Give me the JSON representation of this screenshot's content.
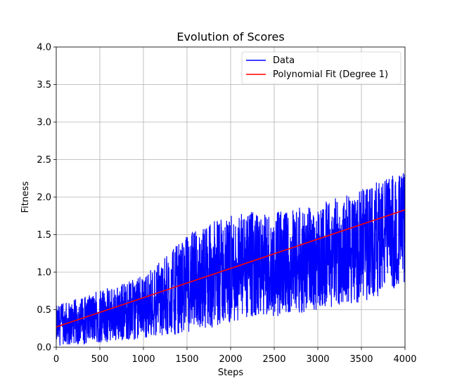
{
  "chart_data": {
    "type": "line",
    "title": "Evolution of Scores",
    "xlabel": "Steps",
    "ylabel": "Fitness",
    "xlim": [
      0,
      4000
    ],
    "ylim": [
      0.0,
      4.0
    ],
    "grid": true,
    "legend_position": "top-right",
    "x_ticks": [
      0,
      500,
      1000,
      1500,
      2000,
      2500,
      3000,
      3500,
      4000
    ],
    "x_tick_labels": [
      "0",
      "500",
      "1000",
      "1500",
      "2000",
      "2500",
      "3000",
      "3500",
      "4000"
    ],
    "y_ticks": [
      0.0,
      0.5,
      1.0,
      1.5,
      2.0,
      2.5,
      3.0,
      3.5,
      4.0
    ],
    "y_tick_labels": [
      "0.0",
      "0.5",
      "1.0",
      "1.5",
      "2.0",
      "2.5",
      "3.0",
      "3.5",
      "4.0"
    ],
    "series": [
      {
        "name": "Data",
        "color": "#0000ff",
        "style": "noisy-band",
        "envelope": {
          "x": [
            0,
            250,
            500,
            750,
            1000,
            1250,
            1500,
            1750,
            2000,
            2250,
            2500,
            2750,
            3000,
            3250,
            3500,
            3750,
            4000
          ],
          "upper": [
            0.55,
            0.65,
            0.75,
            0.85,
            0.95,
            1.2,
            1.5,
            1.65,
            1.75,
            1.8,
            1.8,
            1.85,
            1.9,
            2.0,
            2.1,
            2.25,
            2.35
          ],
          "lower": [
            0.02,
            0.03,
            0.06,
            0.08,
            0.12,
            0.15,
            0.2,
            0.25,
            0.3,
            0.35,
            0.4,
            0.45,
            0.5,
            0.55,
            0.6,
            0.7,
            0.85
          ]
        }
      },
      {
        "name": "Polynomial Fit (Degree 1)",
        "color": "#ff0000",
        "style": "line",
        "x": [
          0,
          4000
        ],
        "y": [
          0.27,
          1.83
        ]
      }
    ]
  }
}
